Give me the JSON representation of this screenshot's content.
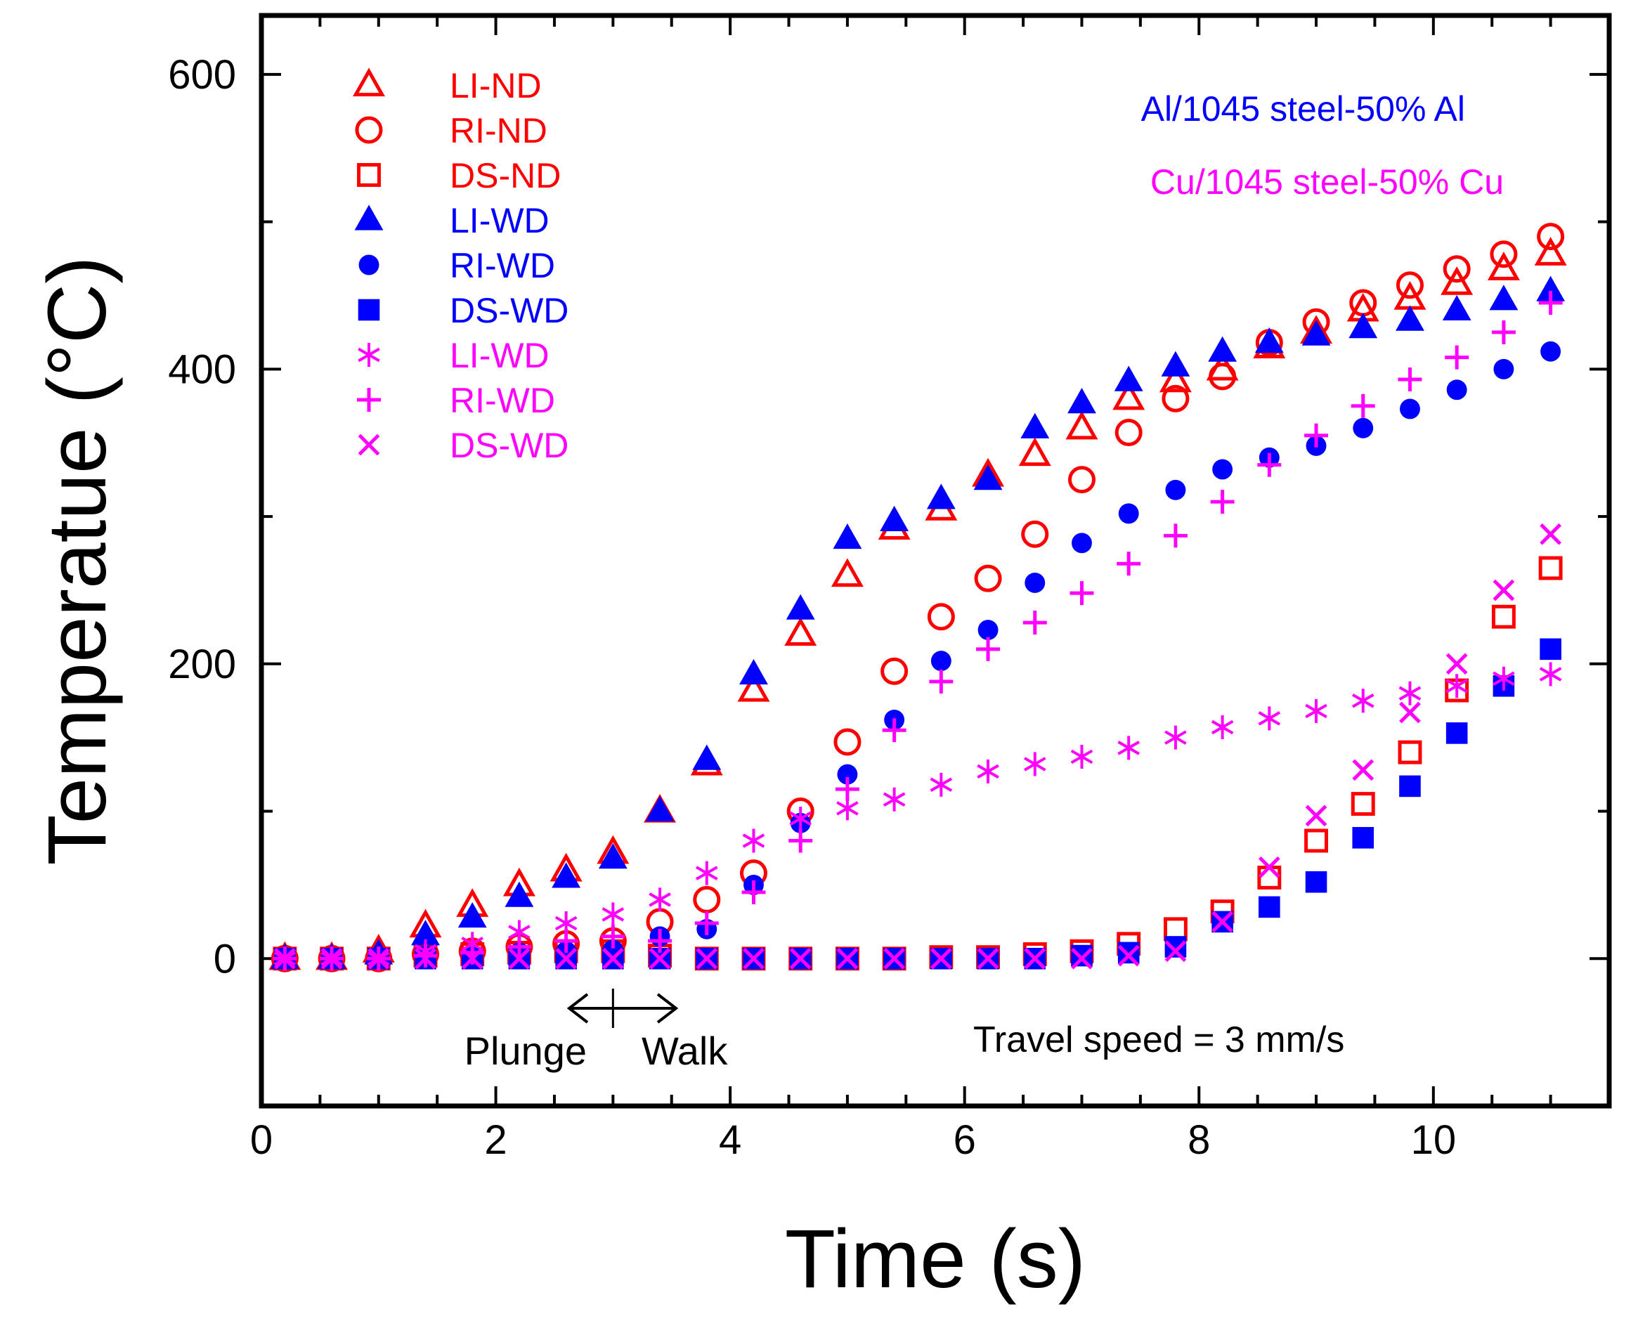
{
  "chart_data": {
    "type": "scatter",
    "xlabel": "Time (s)",
    "ylabel": "Temperatue (°C)",
    "xlim": [
      0,
      11.5
    ],
    "ylim": [
      -100,
      640
    ],
    "x_ticks": [
      0,
      2,
      4,
      6,
      8,
      10
    ],
    "y_ticks": [
      0,
      200,
      400,
      600
    ],
    "x_tick_labels": [
      "0",
      "2",
      "4",
      "6",
      "8",
      "10"
    ],
    "y_tick_labels": [
      "0",
      "200",
      "400",
      "600"
    ],
    "grid": false,
    "legend_position": "top-left",
    "annotations": {
      "group_al": "Al/1045 steel-50% Al",
      "group_cu": "Cu/1045 steel-50% Cu",
      "travel_speed": "Travel speed = 3 mm/s",
      "plunge": "Plunge",
      "walk": "Walk"
    },
    "colors": {
      "nd": "#ff0000",
      "al_wd": "#0000ff",
      "cu_wd": "#ff00ff"
    },
    "series": [
      {
        "name": "LI-ND",
        "marker": "triangle-open",
        "color": "#ff0000",
        "points": [
          [
            0.2,
            0
          ],
          [
            0.6,
            0
          ],
          [
            1.0,
            5
          ],
          [
            1.4,
            22
          ],
          [
            1.8,
            36
          ],
          [
            2.2,
            50
          ],
          [
            2.6,
            60
          ],
          [
            3.0,
            72
          ],
          [
            3.4,
            100
          ],
          [
            3.8,
            132
          ],
          [
            4.2,
            182
          ],
          [
            4.6,
            220
          ],
          [
            5.0,
            260
          ],
          [
            5.4,
            292
          ],
          [
            5.8,
            305
          ],
          [
            6.2,
            328
          ],
          [
            6.6,
            342
          ],
          [
            7.0,
            360
          ],
          [
            7.4,
            380
          ],
          [
            7.8,
            392
          ],
          [
            8.2,
            400
          ],
          [
            8.6,
            415
          ],
          [
            9.0,
            425
          ],
          [
            9.4,
            440
          ],
          [
            9.8,
            448
          ],
          [
            10.2,
            458
          ],
          [
            10.6,
            468
          ],
          [
            11.0,
            478
          ]
        ]
      },
      {
        "name": "RI-ND",
        "marker": "circle-open",
        "color": "#ff0000",
        "points": [
          [
            0.2,
            0
          ],
          [
            0.6,
            0
          ],
          [
            1.0,
            0
          ],
          [
            1.4,
            3
          ],
          [
            1.8,
            5
          ],
          [
            2.2,
            8
          ],
          [
            2.6,
            10
          ],
          [
            3.0,
            12
          ],
          [
            3.4,
            25
          ],
          [
            3.8,
            40
          ],
          [
            4.2,
            58
          ],
          [
            4.6,
            100
          ],
          [
            5.0,
            147
          ],
          [
            5.4,
            195
          ],
          [
            5.8,
            232
          ],
          [
            6.2,
            258
          ],
          [
            6.6,
            288
          ],
          [
            7.0,
            325
          ],
          [
            7.4,
            357
          ],
          [
            7.8,
            380
          ],
          [
            8.2,
            395
          ],
          [
            8.6,
            418
          ],
          [
            9.0,
            432
          ],
          [
            9.4,
            445
          ],
          [
            9.8,
            457
          ],
          [
            10.2,
            468
          ],
          [
            10.6,
            478
          ],
          [
            11.0,
            490
          ]
        ]
      },
      {
        "name": "DS-ND",
        "marker": "square-open",
        "color": "#ff0000",
        "points": [
          [
            0.2,
            0
          ],
          [
            0.6,
            0
          ],
          [
            1.0,
            0
          ],
          [
            1.4,
            2
          ],
          [
            1.8,
            3
          ],
          [
            2.2,
            4
          ],
          [
            2.6,
            5
          ],
          [
            3.0,
            5
          ],
          [
            3.4,
            2
          ],
          [
            3.8,
            0
          ],
          [
            4.2,
            0
          ],
          [
            4.6,
            0
          ],
          [
            5.0,
            0
          ],
          [
            5.4,
            0
          ],
          [
            5.8,
            1
          ],
          [
            6.2,
            1
          ],
          [
            6.6,
            3
          ],
          [
            7.0,
            5
          ],
          [
            7.4,
            10
          ],
          [
            7.8,
            20
          ],
          [
            8.2,
            32
          ],
          [
            8.6,
            55
          ],
          [
            9.0,
            80
          ],
          [
            9.4,
            105
          ],
          [
            9.8,
            140
          ],
          [
            10.2,
            182
          ],
          [
            10.6,
            232
          ],
          [
            11.0,
            265
          ]
        ]
      },
      {
        "name": "LI-WD",
        "marker": "triangle-filled",
        "color": "#0000ff",
        "points": [
          [
            0.2,
            0
          ],
          [
            0.6,
            0
          ],
          [
            1.0,
            3
          ],
          [
            1.4,
            16
          ],
          [
            1.8,
            28
          ],
          [
            2.2,
            42
          ],
          [
            2.6,
            55
          ],
          [
            3.0,
            68
          ],
          [
            3.4,
            100
          ],
          [
            3.8,
            135
          ],
          [
            4.2,
            193
          ],
          [
            4.6,
            237
          ],
          [
            5.0,
            285
          ],
          [
            5.4,
            297
          ],
          [
            5.8,
            312
          ],
          [
            6.2,
            325
          ],
          [
            6.6,
            360
          ],
          [
            7.0,
            377
          ],
          [
            7.4,
            392
          ],
          [
            7.8,
            402
          ],
          [
            8.2,
            412
          ],
          [
            8.6,
            418
          ],
          [
            9.0,
            423
          ],
          [
            9.4,
            428
          ],
          [
            9.8,
            433
          ],
          [
            10.2,
            440
          ],
          [
            10.6,
            447
          ],
          [
            11.0,
            453
          ]
        ]
      },
      {
        "name": "RI-WD",
        "marker": "circle-filled",
        "color": "#0000ff",
        "points": [
          [
            0.2,
            0
          ],
          [
            0.6,
            0
          ],
          [
            1.0,
            0
          ],
          [
            1.4,
            2
          ],
          [
            1.8,
            3
          ],
          [
            2.2,
            4
          ],
          [
            2.6,
            5
          ],
          [
            3.0,
            6
          ],
          [
            3.4,
            15
          ],
          [
            3.8,
            20
          ],
          [
            4.2,
            50
          ],
          [
            4.6,
            92
          ],
          [
            5.0,
            125
          ],
          [
            5.4,
            162
          ],
          [
            5.8,
            202
          ],
          [
            6.2,
            223
          ],
          [
            6.6,
            255
          ],
          [
            7.0,
            282
          ],
          [
            7.4,
            302
          ],
          [
            7.8,
            318
          ],
          [
            8.2,
            332
          ],
          [
            8.6,
            340
          ],
          [
            9.0,
            348
          ],
          [
            9.4,
            360
          ],
          [
            9.8,
            373
          ],
          [
            10.2,
            386
          ],
          [
            10.6,
            400
          ],
          [
            11.0,
            412
          ]
        ]
      },
      {
        "name": "DS-WD",
        "marker": "square-filled",
        "color": "#0000ff",
        "points": [
          [
            0.2,
            0
          ],
          [
            0.6,
            0
          ],
          [
            1.0,
            0
          ],
          [
            1.4,
            0
          ],
          [
            1.8,
            0
          ],
          [
            2.2,
            0
          ],
          [
            2.6,
            0
          ],
          [
            3.0,
            0
          ],
          [
            3.4,
            0
          ],
          [
            3.8,
            0
          ],
          [
            4.2,
            0
          ],
          [
            4.6,
            0
          ],
          [
            5.0,
            0
          ],
          [
            5.4,
            0
          ],
          [
            5.8,
            0
          ],
          [
            6.2,
            0
          ],
          [
            6.6,
            0
          ],
          [
            7.0,
            2
          ],
          [
            7.4,
            4
          ],
          [
            7.8,
            8
          ],
          [
            8.2,
            25
          ],
          [
            8.6,
            35
          ],
          [
            9.0,
            52
          ],
          [
            9.4,
            82
          ],
          [
            9.8,
            117
          ],
          [
            10.2,
            153
          ],
          [
            10.6,
            185
          ],
          [
            11.0,
            210
          ]
        ]
      },
      {
        "name": "LI-WD",
        "marker": "asterisk",
        "color": "#ff00ff",
        "points": [
          [
            0.2,
            0
          ],
          [
            0.6,
            0
          ],
          [
            1.0,
            0
          ],
          [
            1.4,
            5
          ],
          [
            1.8,
            10
          ],
          [
            2.2,
            18
          ],
          [
            2.6,
            24
          ],
          [
            3.0,
            30
          ],
          [
            3.4,
            40
          ],
          [
            3.8,
            58
          ],
          [
            4.2,
            80
          ],
          [
            4.6,
            95
          ],
          [
            5.0,
            102
          ],
          [
            5.4,
            108
          ],
          [
            5.8,
            118
          ],
          [
            6.2,
            127
          ],
          [
            6.6,
            132
          ],
          [
            7.0,
            137
          ],
          [
            7.4,
            143
          ],
          [
            7.8,
            150
          ],
          [
            8.2,
            157
          ],
          [
            8.6,
            163
          ],
          [
            9.0,
            168
          ],
          [
            9.4,
            175
          ],
          [
            9.8,
            180
          ],
          [
            10.2,
            185
          ],
          [
            10.6,
            190
          ],
          [
            11.0,
            193
          ]
        ]
      },
      {
        "name": "RI-WD",
        "marker": "plus",
        "color": "#ff00ff",
        "points": [
          [
            0.2,
            0
          ],
          [
            0.6,
            0
          ],
          [
            1.0,
            0
          ],
          [
            1.4,
            2
          ],
          [
            1.8,
            4
          ],
          [
            2.2,
            8
          ],
          [
            2.6,
            12
          ],
          [
            3.0,
            15
          ],
          [
            3.4,
            12
          ],
          [
            3.8,
            24
          ],
          [
            4.2,
            45
          ],
          [
            4.6,
            80
          ],
          [
            5.0,
            115
          ],
          [
            5.4,
            155
          ],
          [
            5.8,
            188
          ],
          [
            6.2,
            210
          ],
          [
            6.6,
            228
          ],
          [
            7.0,
            248
          ],
          [
            7.4,
            268
          ],
          [
            7.8,
            287
          ],
          [
            8.2,
            310
          ],
          [
            8.6,
            335
          ],
          [
            9.0,
            355
          ],
          [
            9.4,
            375
          ],
          [
            9.8,
            393
          ],
          [
            10.2,
            408
          ],
          [
            10.6,
            425
          ],
          [
            11.0,
            445
          ]
        ]
      },
      {
        "name": "DS-WD",
        "marker": "x",
        "color": "#ff00ff",
        "points": [
          [
            0.2,
            0
          ],
          [
            0.6,
            0
          ],
          [
            1.0,
            0
          ],
          [
            1.4,
            0
          ],
          [
            1.8,
            0
          ],
          [
            2.2,
            0
          ],
          [
            2.6,
            0
          ],
          [
            3.0,
            0
          ],
          [
            3.4,
            0
          ],
          [
            3.8,
            0
          ],
          [
            4.2,
            0
          ],
          [
            4.6,
            0
          ],
          [
            5.0,
            0
          ],
          [
            5.4,
            0
          ],
          [
            5.8,
            0
          ],
          [
            6.2,
            0
          ],
          [
            6.6,
            0
          ],
          [
            7.0,
            0
          ],
          [
            7.4,
            2
          ],
          [
            7.8,
            5
          ],
          [
            8.2,
            25
          ],
          [
            8.6,
            62
          ],
          [
            9.0,
            97
          ],
          [
            9.4,
            128
          ],
          [
            9.8,
            167
          ],
          [
            10.2,
            200
          ],
          [
            10.6,
            250
          ],
          [
            11.0,
            288
          ]
        ]
      }
    ]
  }
}
